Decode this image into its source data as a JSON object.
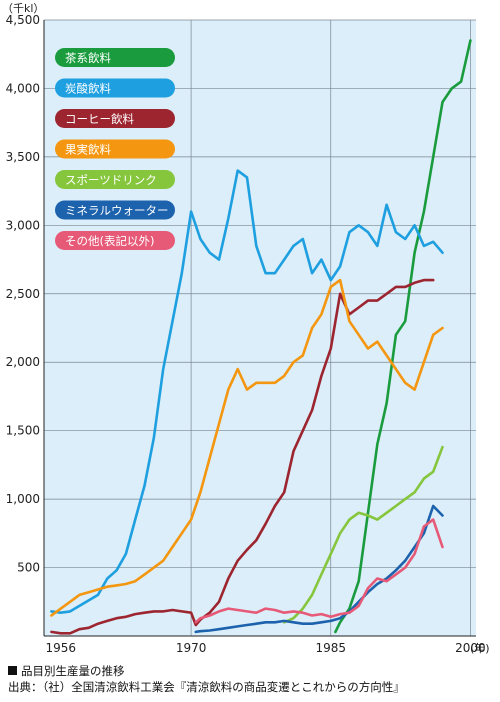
{
  "chart_data": {
    "type": "line",
    "y_unit": "（千kl）",
    "x_unit": "(年)",
    "xlim": [
      1954.2,
      2000.6
    ],
    "ylim": [
      0,
      4500
    ],
    "y_ticks": [
      {
        "value": 500,
        "label": "500"
      },
      {
        "value": 1000,
        "label": "1,000"
      },
      {
        "value": 1500,
        "label": "1,500"
      },
      {
        "value": 2000,
        "label": "2,000"
      },
      {
        "value": 2500,
        "label": "2,500"
      },
      {
        "value": 3000,
        "label": "3,000"
      },
      {
        "value": 3500,
        "label": "3,500"
      },
      {
        "value": 4000,
        "label": "4,000"
      },
      {
        "value": 4500,
        "label": "4,500"
      }
    ],
    "x_ticks": [
      {
        "value": 1956,
        "label": "1956"
      },
      {
        "value": 1970,
        "label": "1970"
      },
      {
        "value": 1985,
        "label": "1985"
      },
      {
        "value": 2000,
        "label": "2000"
      }
    ],
    "vertical_gridlines": [
      1970,
      1985,
      2000
    ],
    "legend_position": "top-left",
    "background": "#dbeef9",
    "series": [
      {
        "name": "茶系飲料",
        "color": "#1a9c3e",
        "points": [
          [
            1985.5,
            30
          ],
          [
            1986,
            100
          ],
          [
            1987,
            200
          ],
          [
            1988,
            400
          ],
          [
            1989,
            900
          ],
          [
            1990,
            1400
          ],
          [
            1991,
            1700
          ],
          [
            1992,
            2200
          ],
          [
            1993,
            2300
          ],
          [
            1994,
            2800
          ],
          [
            1995,
            3100
          ],
          [
            1996,
            3500
          ],
          [
            1997,
            3900
          ],
          [
            1998,
            4000
          ],
          [
            1999,
            4050
          ],
          [
            2000,
            4350
          ]
        ]
      },
      {
        "name": "炭酸飲料",
        "color": "#1e9fe0",
        "points": [
          [
            1955,
            180
          ],
          [
            1956,
            170
          ],
          [
            1957,
            180
          ],
          [
            1958,
            220
          ],
          [
            1959,
            260
          ],
          [
            1960,
            300
          ],
          [
            1961,
            420
          ],
          [
            1962,
            480
          ],
          [
            1963,
            600
          ],
          [
            1964,
            850
          ],
          [
            1965,
            1100
          ],
          [
            1966,
            1450
          ],
          [
            1967,
            1950
          ],
          [
            1968,
            2300
          ],
          [
            1969,
            2650
          ],
          [
            1970,
            3100
          ],
          [
            1971,
            2900
          ],
          [
            1972,
            2800
          ],
          [
            1973,
            2750
          ],
          [
            1974,
            3050
          ],
          [
            1975,
            3400
          ],
          [
            1976,
            3350
          ],
          [
            1977,
            2850
          ],
          [
            1978,
            2650
          ],
          [
            1979,
            2650
          ],
          [
            1980,
            2750
          ],
          [
            1981,
            2850
          ],
          [
            1982,
            2900
          ],
          [
            1983,
            2650
          ],
          [
            1984,
            2750
          ],
          [
            1985,
            2600
          ],
          [
            1986,
            2700
          ],
          [
            1987,
            2950
          ],
          [
            1988,
            3000
          ],
          [
            1989,
            2950
          ],
          [
            1990,
            2850
          ],
          [
            1991,
            3150
          ],
          [
            1992,
            2950
          ],
          [
            1993,
            2900
          ],
          [
            1994,
            3000
          ],
          [
            1995,
            2850
          ],
          [
            1996,
            2880
          ],
          [
            1997,
            2800
          ]
        ]
      },
      {
        "name": "コーヒー飲料",
        "color": "#9c2530",
        "points": [
          [
            1955,
            30
          ],
          [
            1956,
            20
          ],
          [
            1957,
            20
          ],
          [
            1958,
            50
          ],
          [
            1959,
            60
          ],
          [
            1960,
            90
          ],
          [
            1961,
            110
          ],
          [
            1962,
            130
          ],
          [
            1963,
            140
          ],
          [
            1964,
            160
          ],
          [
            1965,
            170
          ],
          [
            1966,
            180
          ],
          [
            1967,
            180
          ],
          [
            1968,
            190
          ],
          [
            1969,
            180
          ],
          [
            1970,
            170
          ],
          [
            1970.5,
            80
          ],
          [
            1971,
            120
          ],
          [
            1972,
            170
          ],
          [
            1973,
            250
          ],
          [
            1974,
            420
          ],
          [
            1975,
            550
          ],
          [
            1976,
            630
          ],
          [
            1977,
            700
          ],
          [
            1978,
            820
          ],
          [
            1979,
            950
          ],
          [
            1980,
            1050
          ],
          [
            1981,
            1350
          ],
          [
            1982,
            1500
          ],
          [
            1983,
            1650
          ],
          [
            1984,
            1900
          ],
          [
            1985,
            2100
          ],
          [
            1986,
            2500
          ],
          [
            1987,
            2350
          ],
          [
            1988,
            2400
          ],
          [
            1989,
            2450
          ],
          [
            1990,
            2450
          ],
          [
            1991,
            2500
          ],
          [
            1992,
            2550
          ],
          [
            1993,
            2550
          ],
          [
            1994,
            2580
          ],
          [
            1995,
            2600
          ],
          [
            1996,
            2600
          ]
        ]
      },
      {
        "name": "果実飲料",
        "color": "#f4960f",
        "points": [
          [
            1955,
            150
          ],
          [
            1956,
            200
          ],
          [
            1957,
            250
          ],
          [
            1958,
            300
          ],
          [
            1959,
            320
          ],
          [
            1960,
            340
          ],
          [
            1961,
            360
          ],
          [
            1962,
            370
          ],
          [
            1963,
            380
          ],
          [
            1964,
            400
          ],
          [
            1965,
            450
          ],
          [
            1966,
            500
          ],
          [
            1967,
            550
          ],
          [
            1968,
            650
          ],
          [
            1969,
            750
          ],
          [
            1970,
            850
          ],
          [
            1971,
            1050
          ],
          [
            1972,
            1300
          ],
          [
            1973,
            1550
          ],
          [
            1974,
            1800
          ],
          [
            1975,
            1950
          ],
          [
            1976,
            1800
          ],
          [
            1977,
            1850
          ],
          [
            1978,
            1850
          ],
          [
            1979,
            1850
          ],
          [
            1980,
            1900
          ],
          [
            1981,
            2000
          ],
          [
            1982,
            2050
          ],
          [
            1983,
            2250
          ],
          [
            1984,
            2350
          ],
          [
            1985,
            2550
          ],
          [
            1986,
            2600
          ],
          [
            1987,
            2300
          ],
          [
            1988,
            2200
          ],
          [
            1989,
            2100
          ],
          [
            1990,
            2150
          ],
          [
            1991,
            2050
          ],
          [
            1992,
            1950
          ],
          [
            1993,
            1850
          ],
          [
            1994,
            1800
          ],
          [
            1995,
            2000
          ],
          [
            1996,
            2200
          ],
          [
            1997,
            2250
          ]
        ]
      },
      {
        "name": "スポーツドリンク",
        "color": "#86c63c",
        "points": [
          [
            1980,
            100
          ],
          [
            1981,
            130
          ],
          [
            1982,
            200
          ],
          [
            1983,
            300
          ],
          [
            1984,
            450
          ],
          [
            1985,
            600
          ],
          [
            1986,
            750
          ],
          [
            1987,
            850
          ],
          [
            1988,
            900
          ],
          [
            1989,
            880
          ],
          [
            1990,
            850
          ],
          [
            1991,
            900
          ],
          [
            1992,
            950
          ],
          [
            1993,
            1000
          ],
          [
            1994,
            1050
          ],
          [
            1995,
            1150
          ],
          [
            1996,
            1200
          ],
          [
            1997,
            1380
          ]
        ]
      },
      {
        "name": "ミネラルウォーター",
        "color": "#1d62ad",
        "points": [
          [
            1970.5,
            30
          ],
          [
            1971,
            35
          ],
          [
            1972,
            40
          ],
          [
            1973,
            50
          ],
          [
            1974,
            60
          ],
          [
            1975,
            70
          ],
          [
            1976,
            80
          ],
          [
            1977,
            90
          ],
          [
            1978,
            100
          ],
          [
            1979,
            100
          ],
          [
            1980,
            110
          ],
          [
            1981,
            100
          ],
          [
            1982,
            90
          ],
          [
            1983,
            90
          ],
          [
            1984,
            100
          ],
          [
            1985,
            110
          ],
          [
            1986,
            130
          ],
          [
            1987,
            180
          ],
          [
            1988,
            250
          ],
          [
            1989,
            320
          ],
          [
            1990,
            380
          ],
          [
            1991,
            420
          ],
          [
            1992,
            480
          ],
          [
            1993,
            550
          ],
          [
            1994,
            650
          ],
          [
            1995,
            750
          ],
          [
            1996,
            950
          ],
          [
            1997,
            880
          ]
        ]
      },
      {
        "name": "その他(表記以外)",
        "color": "#e65a78",
        "points": [
          [
            1970.5,
            100
          ],
          [
            1971,
            130
          ],
          [
            1972,
            150
          ],
          [
            1973,
            180
          ],
          [
            1974,
            200
          ],
          [
            1975,
            190
          ],
          [
            1976,
            180
          ],
          [
            1977,
            170
          ],
          [
            1978,
            200
          ],
          [
            1979,
            190
          ],
          [
            1980,
            170
          ],
          [
            1981,
            180
          ],
          [
            1982,
            170
          ],
          [
            1983,
            150
          ],
          [
            1984,
            160
          ],
          [
            1985,
            140
          ],
          [
            1986,
            160
          ],
          [
            1987,
            170
          ],
          [
            1988,
            220
          ],
          [
            1989,
            350
          ],
          [
            1990,
            420
          ],
          [
            1991,
            400
          ],
          [
            1992,
            450
          ],
          [
            1993,
            500
          ],
          [
            1994,
            600
          ],
          [
            1995,
            800
          ],
          [
            1996,
            850
          ],
          [
            1997,
            650
          ]
        ]
      }
    ]
  },
  "caption": {
    "title": "品目別生産量の推移",
    "source": "出典：（社）全国清涼飲料工業会『清涼飲料の商品変遷とこれからの方向性』"
  }
}
